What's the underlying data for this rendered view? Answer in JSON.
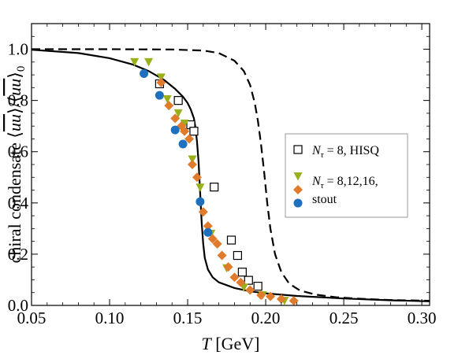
{
  "chart_data": {
    "type": "scatter",
    "xlabel": "T [GeV]",
    "xlabel_var": "T",
    "xlabel_unit": " [GeV]",
    "ylabel": "chiral condensate ⟨ūu⟩/⟨ūu⟩₀",
    "ylabel_prefix": "chiral condensate ",
    "xlim": [
      0.05,
      0.305
    ],
    "ylim": [
      0.0,
      1.1
    ],
    "x_ticks": [
      "0.05",
      "0.10",
      "0.15",
      "0.20",
      "0.25",
      "0.30"
    ],
    "x_tick_values": [
      0.05,
      0.1,
      0.15,
      0.2,
      0.25,
      0.3
    ],
    "y_ticks": [
      "0.0",
      "0.2",
      "0.4",
      "0.6",
      "0.8",
      "1.0"
    ],
    "y_tick_values": [
      0.0,
      0.2,
      0.4,
      0.6,
      0.8,
      1.0
    ],
    "grid": false,
    "legend_position": "right",
    "legend": [
      {
        "series": "hisq",
        "label_sub": "τ",
        "label_rest": " = 8, HISQ"
      },
      {
        "series": "stout_nt",
        "label_sub": "τ",
        "label_rest": " = 8,12,16,"
      },
      {
        "series": "stout_blue",
        "label_rest": "stout"
      }
    ],
    "colors": {
      "hisq": "#000000",
      "stout_triangle": "#9aaf1a",
      "stout_diamond": "#e07b2b",
      "stout_circle": "#1f6fbf",
      "solid_curve": "#000000",
      "dashed_curve": "#000000"
    },
    "series": [
      {
        "id": "solid_curve",
        "style": "solid",
        "x": [
          0.05,
          0.08,
          0.1,
          0.115,
          0.125,
          0.135,
          0.142,
          0.147,
          0.15,
          0.152,
          0.154,
          0.155,
          0.156,
          0.157,
          0.158,
          0.159,
          0.16,
          0.161,
          0.163,
          0.166,
          0.17,
          0.18,
          0.19,
          0.2,
          0.22,
          0.25,
          0.28,
          0.305
        ],
        "y": [
          0.998,
          0.985,
          0.965,
          0.94,
          0.915,
          0.88,
          0.845,
          0.815,
          0.79,
          0.765,
          0.73,
          0.695,
          0.64,
          0.56,
          0.44,
          0.32,
          0.24,
          0.185,
          0.14,
          0.11,
          0.09,
          0.068,
          0.055,
          0.047,
          0.037,
          0.027,
          0.02,
          0.016
        ]
      },
      {
        "id": "dashed_curve",
        "style": "dashed",
        "x": [
          0.05,
          0.1,
          0.14,
          0.16,
          0.17,
          0.18,
          0.186,
          0.19,
          0.193,
          0.195,
          0.197,
          0.199,
          0.201,
          0.203,
          0.206,
          0.21,
          0.215,
          0.222,
          0.232,
          0.245,
          0.26,
          0.28,
          0.305
        ],
        "y": [
          1.0,
          1.0,
          0.999,
          0.995,
          0.985,
          0.955,
          0.915,
          0.86,
          0.79,
          0.72,
          0.63,
          0.52,
          0.4,
          0.3,
          0.2,
          0.13,
          0.085,
          0.058,
          0.042,
          0.032,
          0.026,
          0.021,
          0.018
        ]
      },
      {
        "id": "hisq",
        "marker": "open-square",
        "x": [
          0.132,
          0.144,
          0.152,
          0.154,
          0.167,
          0.178,
          0.182,
          0.185,
          0.189,
          0.195
        ],
        "y": [
          0.865,
          0.8,
          0.705,
          0.68,
          0.462,
          0.255,
          0.195,
          0.13,
          0.098,
          0.075
        ]
      },
      {
        "id": "stout_triangle",
        "marker": "triangle-down",
        "x": [
          0.116,
          0.125,
          0.133,
          0.137,
          0.144,
          0.148,
          0.153,
          0.158,
          0.165,
          0.175,
          0.186,
          0.198,
          0.212
        ],
        "y": [
          0.95,
          0.95,
          0.89,
          0.805,
          0.75,
          0.71,
          0.57,
          0.46,
          0.28,
          0.145,
          0.07,
          0.04,
          0.018
        ]
      },
      {
        "id": "stout_diamond",
        "marker": "diamond",
        "x": [
          0.133,
          0.138,
          0.142,
          0.146,
          0.148,
          0.151,
          0.153,
          0.156,
          0.16,
          0.163,
          0.166,
          0.169,
          0.172,
          0.176,
          0.18,
          0.184,
          0.19,
          0.197,
          0.203,
          0.21,
          0.218
        ],
        "y": [
          0.87,
          0.78,
          0.73,
          0.7,
          0.68,
          0.65,
          0.55,
          0.5,
          0.365,
          0.31,
          0.26,
          0.24,
          0.195,
          0.15,
          0.11,
          0.09,
          0.06,
          0.04,
          0.035,
          0.025,
          0.018
        ]
      },
      {
        "id": "stout_circle",
        "marker": "circle",
        "x": [
          0.122,
          0.132,
          0.142,
          0.147,
          0.158,
          0.163
        ],
        "y": [
          0.905,
          0.82,
          0.685,
          0.63,
          0.405,
          0.285
        ]
      }
    ]
  }
}
